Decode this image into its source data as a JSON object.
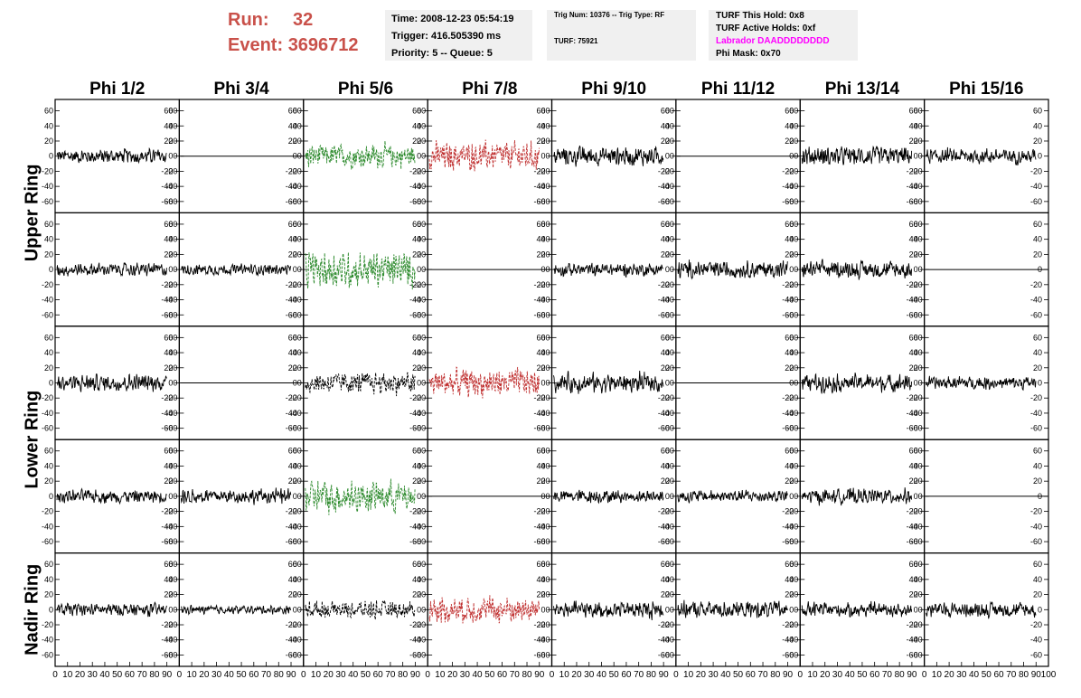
{
  "header": {
    "run_label": "Run:",
    "run_value": "32",
    "event_label": "Event:",
    "event_value": "3696712",
    "time_line": "Time: 2008-12-23 05:54:19",
    "trigger_line": "Trigger: 416.505390 ms",
    "priority_line": "Priority: 5 -- Queue: 5",
    "trig_num_line": "Trig Num: 10376 -- Trig Type: RF",
    "turf_line": "TURF: 75921",
    "turf_hold_line": "TURF This Hold: 0x8",
    "turf_active_line": "TURF Active Holds: 0xf",
    "labrador_line": "Labrador DAADDDDDDDD",
    "phi_mask_line": "Phi Mask: 0x70"
  },
  "colors": {
    "accent_red": "#c9514a",
    "labrador": "#ff00ff",
    "trace_black": "#000000",
    "trace_green": "#2e8b2e",
    "trace_red": "#c03030"
  },
  "chart_data": {
    "type": "line",
    "columns": [
      "Phi 1/2",
      "Phi 3/4",
      "Phi 5/6",
      "Phi 7/8",
      "Phi 9/10",
      "Phi 11/12",
      "Phi 13/14",
      "Phi 15/16"
    ],
    "rows": [
      "Upper Ring",
      "Upper Ring",
      "Lower Ring",
      "Lower Ring",
      "Nadir Ring"
    ],
    "row_labels": [
      "Upper Ring",
      "Lower Ring",
      "Nadir Ring"
    ],
    "xlim": [
      0,
      100
    ],
    "ylim": [
      -75,
      75
    ],
    "y_ticks": [
      -60,
      -40,
      -20,
      0,
      20,
      40,
      60
    ],
    "x_ticks": [
      0,
      10,
      20,
      30,
      40,
      50,
      60,
      70,
      80,
      90,
      100
    ],
    "panels": [
      [
        {
          "style": "noise",
          "color": "black",
          "amp": 14
        },
        {
          "style": "flat",
          "color": "black",
          "amp": 0
        },
        {
          "style": "noise",
          "color": "green",
          "amp": 22,
          "dashed": true
        },
        {
          "style": "noise",
          "color": "red",
          "amp": 26,
          "dashed": true
        },
        {
          "style": "noise",
          "color": "black",
          "amp": 18
        },
        {
          "style": "flat",
          "color": "black",
          "amp": 0
        },
        {
          "style": "noise",
          "color": "black",
          "amp": 18
        },
        {
          "style": "noise",
          "color": "black",
          "amp": 14
        }
      ],
      [
        {
          "style": "noise",
          "color": "black",
          "amp": 12
        },
        {
          "style": "noise",
          "color": "black",
          "amp": 10
        },
        {
          "style": "noise",
          "color": "green",
          "amp": 34,
          "dashed": true
        },
        {
          "style": "flat",
          "color": "black",
          "amp": 0
        },
        {
          "style": "noise",
          "color": "black",
          "amp": 12
        },
        {
          "style": "noise",
          "color": "black",
          "amp": 16
        },
        {
          "style": "noise",
          "color": "black",
          "amp": 16
        },
        {
          "style": "flat",
          "color": "black",
          "amp": 0
        }
      ],
      [
        {
          "style": "noise",
          "color": "black",
          "amp": 16
        },
        {
          "style": "flat",
          "color": "black",
          "amp": 0
        },
        {
          "style": "noise",
          "color": "black",
          "amp": 20,
          "dashed": true
        },
        {
          "style": "noise",
          "color": "red",
          "amp": 26,
          "dashed": true
        },
        {
          "style": "noise",
          "color": "black",
          "amp": 18
        },
        {
          "style": "flat",
          "color": "black",
          "amp": 0
        },
        {
          "style": "noise",
          "color": "black",
          "amp": 16
        },
        {
          "style": "noise",
          "color": "black",
          "amp": 12
        }
      ],
      [
        {
          "style": "noise",
          "color": "black",
          "amp": 12
        },
        {
          "style": "noise",
          "color": "black",
          "amp": 14
        },
        {
          "style": "noise",
          "color": "green",
          "amp": 30,
          "dashed": true
        },
        {
          "style": "flat",
          "color": "black",
          "amp": 0
        },
        {
          "style": "noise",
          "color": "black",
          "amp": 12
        },
        {
          "style": "noise",
          "color": "black",
          "amp": 12
        },
        {
          "style": "noise",
          "color": "black",
          "amp": 14
        },
        {
          "style": "flat",
          "color": "black",
          "amp": 0
        }
      ],
      [
        {
          "style": "noise",
          "color": "black",
          "amp": 12
        },
        {
          "style": "noise",
          "color": "black",
          "amp": 8
        },
        {
          "style": "noise",
          "color": "black",
          "amp": 16,
          "dashed": true
        },
        {
          "style": "noise",
          "color": "red",
          "amp": 24,
          "dashed": true
        },
        {
          "style": "noise",
          "color": "black",
          "amp": 16
        },
        {
          "style": "noise",
          "color": "black",
          "amp": 16
        },
        {
          "style": "noise",
          "color": "black",
          "amp": 14
        },
        {
          "style": "noise",
          "color": "black",
          "amp": 14
        }
      ]
    ]
  }
}
